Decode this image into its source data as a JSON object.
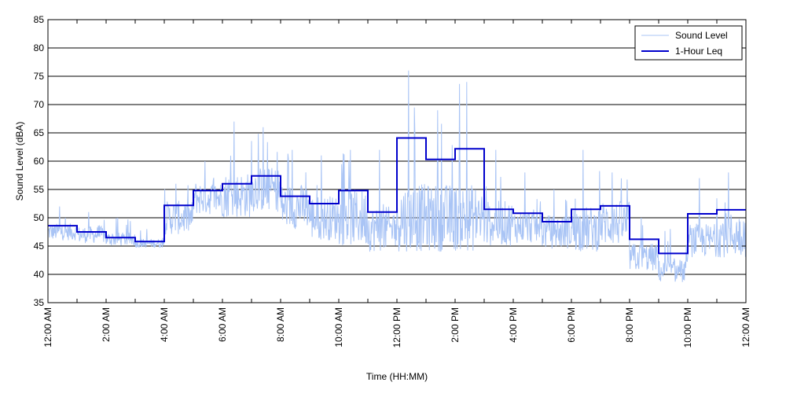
{
  "chart_data": {
    "type": "line",
    "xlabel": "Time (HH:MM)",
    "ylabel": "Sound Level (dBA)",
    "xlim": [
      0,
      24
    ],
    "ylim": [
      35,
      85
    ],
    "y_ticks": [
      35,
      40,
      45,
      50,
      55,
      60,
      65,
      70,
      75,
      80,
      85
    ],
    "x_tick_hours": [
      0,
      2,
      4,
      6,
      8,
      10,
      12,
      14,
      16,
      18,
      20,
      22,
      24
    ],
    "x_tick_labels": [
      "12:00 AM",
      "2:00 AM",
      "4:00 AM",
      "6:00 AM",
      "8:00 AM",
      "10:00 AM",
      "12:00 PM",
      "2:00 PM",
      "4:00 PM",
      "6:00 PM",
      "8:00 PM",
      "10:00 PM",
      "12:00 AM"
    ],
    "x_grid_hours": [
      1,
      3,
      5,
      7,
      9,
      11,
      13,
      15,
      17,
      19,
      21,
      23
    ],
    "grid": "horizontal",
    "legend_placement": "top-right",
    "series": [
      {
        "name": "Sound Level",
        "color": "#a9c4f5",
        "style": "thin-line",
        "hourly_profile": [
          {
            "hour": 0,
            "base": 47.5,
            "spread": 1.5,
            "peak": 52
          },
          {
            "hour": 1,
            "base": 47,
            "spread": 1.5,
            "peak": 51
          },
          {
            "hour": 2,
            "base": 46.2,
            "spread": 1.2,
            "peak": 50
          },
          {
            "hour": 3,
            "base": 45.5,
            "spread": 0.8,
            "peak": 48
          },
          {
            "hour": 4,
            "base": 50,
            "spread": 3,
            "peak": 56
          },
          {
            "hour": 5,
            "base": 53.5,
            "spread": 3,
            "peak": 60
          },
          {
            "hour": 6,
            "base": 54,
            "spread": 4,
            "peak": 67
          },
          {
            "hour": 7,
            "base": 55,
            "spread": 4,
            "peak": 66
          },
          {
            "hour": 8,
            "base": 52,
            "spread": 4,
            "peak": 62
          },
          {
            "hour": 9,
            "base": 50,
            "spread": 4,
            "peak": 61
          },
          {
            "hour": 10,
            "base": 50,
            "spread": 5,
            "peak": 62
          },
          {
            "hour": 11,
            "base": 48,
            "spread": 4,
            "peak": 62
          },
          {
            "hour": 12,
            "base": 50,
            "spread": 6,
            "peak": 76
          },
          {
            "hour": 13,
            "base": 50,
            "spread": 6,
            "peak": 69
          },
          {
            "hour": 14,
            "base": 50,
            "spread": 6,
            "peak": 74
          },
          {
            "hour": 15,
            "base": 49,
            "spread": 4,
            "peak": 62
          },
          {
            "hour": 16,
            "base": 48.5,
            "spread": 3,
            "peak": 58
          },
          {
            "hour": 17,
            "base": 47.5,
            "spread": 3,
            "peak": 55
          },
          {
            "hour": 18,
            "base": 48,
            "spread": 4,
            "peak": 62
          },
          {
            "hour": 19,
            "base": 49,
            "spread": 4,
            "peak": 58
          },
          {
            "hour": 20,
            "base": 43,
            "spread": 2.5,
            "peak": 50
          },
          {
            "hour": 21,
            "base": 40.5,
            "spread": 2,
            "peak": 48
          },
          {
            "hour": 22,
            "base": 46,
            "spread": 3,
            "peak": 57
          },
          {
            "hour": 23,
            "base": 47,
            "spread": 4,
            "peak": 58
          }
        ]
      },
      {
        "name": "1-Hour Leq",
        "color": "#0000cc",
        "style": "step",
        "x": [
          0,
          1,
          2,
          3,
          4,
          5,
          6,
          7,
          8,
          9,
          10,
          11,
          12,
          13,
          14,
          15,
          16,
          17,
          18,
          19,
          20,
          21,
          22,
          23
        ],
        "values": [
          48.6,
          47.5,
          46.5,
          45.8,
          52.2,
          54.8,
          56.0,
          57.4,
          53.8,
          52.5,
          54.8,
          51.0,
          64.1,
          60.3,
          62.2,
          51.5,
          50.8,
          49.3,
          51.5,
          52.1,
          46.2,
          43.7,
          50.7,
          51.4
        ]
      }
    ]
  },
  "legend": {
    "items": [
      {
        "label": "Sound Level",
        "color": "#a9c4f5"
      },
      {
        "label": "1-Hour Leq",
        "color": "#0000cc"
      }
    ]
  }
}
